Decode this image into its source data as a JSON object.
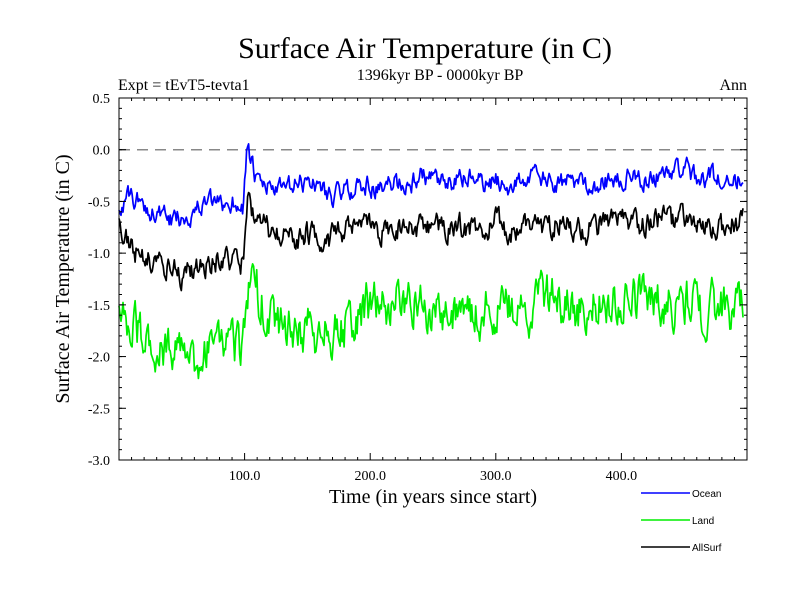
{
  "chart_data": {
    "type": "line",
    "title": "Surface Air Temperature (in C)",
    "subtitle": "1396kyr BP - 0000kyr BP",
    "left_label": "Expt = tEvT5-tevta1",
    "right_label": "Ann",
    "xlabel": "Time (in years since start)",
    "ylabel": "Surface Air Temperature (in C)",
    "xlim": [
      0,
      500
    ],
    "ylim": [
      -3.0,
      0.5
    ],
    "xticks": [
      100,
      200,
      300,
      400
    ],
    "xtick_labels": [
      "100.0",
      "200.0",
      "300.0",
      "400.0"
    ],
    "yticks": [
      -3.0,
      -2.5,
      -2.0,
      -1.5,
      -1.0,
      -0.5,
      0.0,
      0.5
    ],
    "ytick_labels": [
      "-3.0",
      "-2.5",
      "-2.0",
      "-1.5",
      "-1.0",
      "-0.5",
      "0.0",
      "0.5"
    ],
    "reference_line": 0.0,
    "legend_position": "bottom-right",
    "series": [
      {
        "name": "Ocean",
        "color": "#0000ff",
        "x": [
          0,
          10,
          20,
          30,
          40,
          50,
          60,
          70,
          80,
          90,
          99,
          102,
          110,
          120,
          130,
          140,
          150,
          160,
          170,
          180,
          190,
          200,
          210,
          220,
          230,
          240,
          250,
          260,
          270,
          280,
          290,
          300,
          310,
          320,
          330,
          340,
          350,
          360,
          370,
          380,
          390,
          400,
          410,
          420,
          430,
          440,
          450,
          460,
          470,
          480,
          490,
          497
        ],
        "values": [
          -0.55,
          -0.45,
          -0.55,
          -0.6,
          -0.7,
          -0.65,
          -0.6,
          -0.5,
          -0.55,
          -0.5,
          -0.55,
          0.05,
          -0.35,
          -0.35,
          -0.4,
          -0.35,
          -0.3,
          -0.35,
          -0.45,
          -0.4,
          -0.35,
          -0.35,
          -0.4,
          -0.3,
          -0.35,
          -0.25,
          -0.3,
          -0.35,
          -0.3,
          -0.25,
          -0.35,
          -0.3,
          -0.35,
          -0.3,
          -0.25,
          -0.3,
          -0.35,
          -0.3,
          -0.3,
          -0.35,
          -0.3,
          -0.3,
          -0.25,
          -0.3,
          -0.25,
          -0.2,
          -0.15,
          -0.3,
          -0.25,
          -0.3,
          -0.25,
          -0.35
        ]
      },
      {
        "name": "Land",
        "color": "#00ee00",
        "x": [
          0,
          10,
          20,
          30,
          40,
          50,
          60,
          70,
          80,
          90,
          99,
          102,
          110,
          120,
          130,
          140,
          150,
          160,
          170,
          180,
          190,
          200,
          210,
          220,
          230,
          240,
          250,
          260,
          270,
          280,
          290,
          300,
          310,
          320,
          330,
          340,
          350,
          360,
          370,
          380,
          390,
          400,
          410,
          420,
          430,
          440,
          450,
          460,
          470,
          480,
          490,
          497
        ],
        "values": [
          -1.55,
          -1.7,
          -1.8,
          -1.95,
          -1.9,
          -2.0,
          -2.05,
          -1.95,
          -1.9,
          -1.95,
          -1.9,
          -1.3,
          -1.35,
          -1.6,
          -1.75,
          -1.8,
          -1.75,
          -1.8,
          -1.75,
          -1.7,
          -1.6,
          -1.5,
          -1.55,
          -1.5,
          -1.45,
          -1.55,
          -1.5,
          -1.55,
          -1.5,
          -1.6,
          -1.55,
          -1.5,
          -1.55,
          -1.6,
          -1.5,
          -1.4,
          -1.45,
          -1.5,
          -1.55,
          -1.5,
          -1.45,
          -1.5,
          -1.45,
          -1.4,
          -1.45,
          -1.5,
          -1.45,
          -1.5,
          -1.55,
          -1.5,
          -1.55,
          -1.5
        ]
      },
      {
        "name": "AllSurf",
        "color": "#000000",
        "x": [
          0,
          10,
          20,
          30,
          40,
          50,
          60,
          70,
          80,
          90,
          99,
          102,
          110,
          120,
          130,
          140,
          150,
          160,
          170,
          180,
          190,
          200,
          210,
          220,
          230,
          240,
          250,
          260,
          270,
          280,
          290,
          300,
          310,
          320,
          330,
          340,
          350,
          360,
          370,
          380,
          390,
          400,
          410,
          420,
          430,
          440,
          450,
          460,
          470,
          480,
          490,
          497
        ],
        "values": [
          -0.75,
          -0.95,
          -1.05,
          -1.1,
          -1.15,
          -1.2,
          -1.15,
          -1.1,
          -1.05,
          -1.1,
          -1.1,
          -0.45,
          -0.7,
          -0.8,
          -0.85,
          -0.85,
          -0.8,
          -0.85,
          -0.85,
          -0.8,
          -0.75,
          -0.75,
          -0.8,
          -0.75,
          -0.7,
          -0.75,
          -0.7,
          -0.8,
          -0.75,
          -0.75,
          -0.8,
          -0.7,
          -0.8,
          -0.75,
          -0.7,
          -0.75,
          -0.7,
          -0.75,
          -0.8,
          -0.75,
          -0.7,
          -0.7,
          -0.75,
          -0.7,
          -0.65,
          -0.7,
          -0.65,
          -0.75,
          -0.8,
          -0.75,
          -0.7,
          -0.7
        ]
      }
    ]
  }
}
